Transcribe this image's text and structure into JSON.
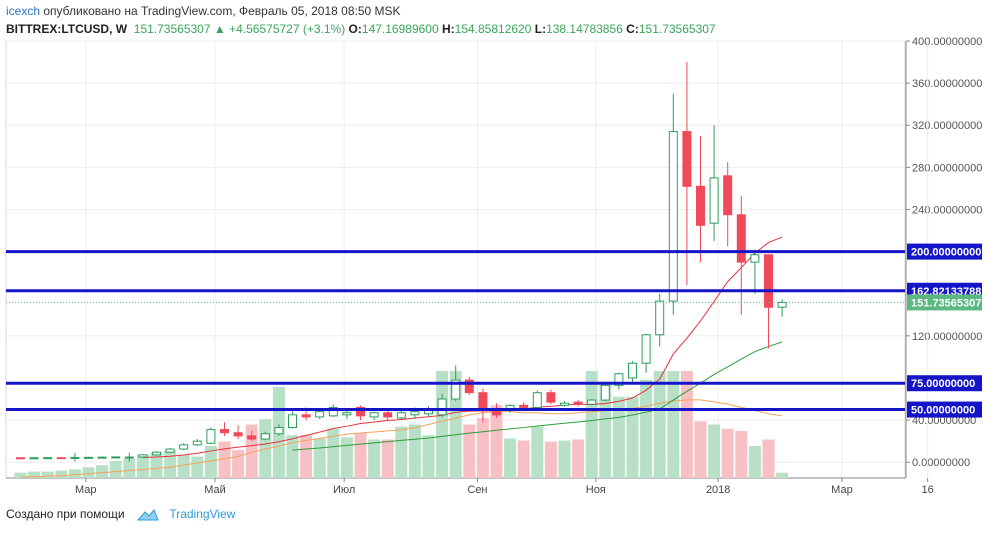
{
  "header": {
    "author": "icexch",
    "published": "опубликовано на TradingView.com, Февраль 05, 2018 08:50 MSK",
    "symbol": "BITTREX:LTCUSD, W",
    "last": "151.73565307",
    "change_arrow": "▲",
    "change": "+4.56575727 (+3.1%)",
    "o_label": "O:",
    "o": "147.16989600",
    "h_label": "H:",
    "h": "154.85812620",
    "l_label": "L:",
    "l": "138.14783856",
    "c_label": "C:",
    "c": "151.73565307"
  },
  "footer": {
    "created_with": "Создано при помощи",
    "brand": "TradingView"
  },
  "colors": {
    "up": "#2e9e5c",
    "up_fill": "#ffffff",
    "down": "#f04a5a",
    "hline": "#1414c8",
    "ma_fast": "#e8323c",
    "ma_slow": "#2e9e3a",
    "vol_ma": "#f5a25a",
    "vol_up": "#b7e0c6",
    "vol_down": "#f7c0c5",
    "price_label": "#5bb882",
    "grid": "#ededed"
  },
  "chart_data": {
    "type": "candlestick",
    "title": "",
    "y_axis": {
      "min": -15,
      "max": 400,
      "scale": "linear",
      "ticks": [
        {
          "value": 400,
          "label": "400.00000000"
        },
        {
          "value": 360,
          "label": "360.00000000"
        },
        {
          "value": 320,
          "label": "320.00000000"
        },
        {
          "value": 280,
          "label": "280.00000000"
        },
        {
          "value": 240,
          "label": "240.00000000"
        },
        {
          "value": 120,
          "label": "120.00000000"
        },
        {
          "value": 40,
          "label": "40.00000000"
        },
        {
          "value": 0,
          "label": "0.00000000"
        }
      ]
    },
    "x_axis": {
      "ticks": [
        {
          "index": 4.8,
          "label": "Мар"
        },
        {
          "index": 14.3,
          "label": "Май"
        },
        {
          "index": 23.8,
          "label": "Июл"
        },
        {
          "index": 33.6,
          "label": "Сен"
        },
        {
          "index": 42.3,
          "label": "Ноя"
        },
        {
          "index": 51.3,
          "label": "2018"
        },
        {
          "index": 60.4,
          "label": "Мар"
        },
        {
          "index": 66.7,
          "label": "16"
        }
      ]
    },
    "horizontal_lines": [
      {
        "value": 200,
        "label": "200.00000000"
      },
      {
        "value": 162.82133788,
        "label": "162.82133788"
      },
      {
        "value": 75,
        "label": "75.00000000"
      },
      {
        "value": 50,
        "label": "50.00000000"
      }
    ],
    "last_price": {
      "value": 151.73565307,
      "label": "151.73565307"
    },
    "candles": [
      {
        "o": 4.2,
        "h": 4.5,
        "l": 3.6,
        "c": 4.1
      },
      {
        "o": 4.1,
        "h": 4.6,
        "l": 3.8,
        "c": 4.2
      },
      {
        "o": 4.2,
        "h": 4.7,
        "l": 3.9,
        "c": 4.3
      },
      {
        "o": 4.3,
        "h": 4.8,
        "l": 3.9,
        "c": 4.2
      },
      {
        "o": 4.0,
        "h": 9.0,
        "l": 0.5,
        "c": 4.5
      },
      {
        "o": 4.5,
        "h": 5.2,
        "l": 4.0,
        "c": 4.6
      },
      {
        "o": 4.6,
        "h": 5.3,
        "l": 4.2,
        "c": 4.8
      },
      {
        "o": 4.8,
        "h": 5.6,
        "l": 4.3,
        "c": 5.0
      },
      {
        "o": 4.5,
        "h": 9.0,
        "l": 0.5,
        "c": 4.9
      },
      {
        "o": 5.0,
        "h": 7.5,
        "l": 4.6,
        "c": 7.0
      },
      {
        "o": 7.0,
        "h": 10.5,
        "l": 6.5,
        "c": 9.5
      },
      {
        "o": 9.5,
        "h": 13.5,
        "l": 9.0,
        "c": 12.5
      },
      {
        "o": 12.5,
        "h": 18.0,
        "l": 11.5,
        "c": 16.5
      },
      {
        "o": 16.5,
        "h": 22.0,
        "l": 15.5,
        "c": 20.0
      },
      {
        "o": 18.0,
        "h": 33.0,
        "l": 17.0,
        "c": 31.0
      },
      {
        "o": 31.0,
        "h": 38.0,
        "l": 25.0,
        "c": 28.0
      },
      {
        "o": 28.0,
        "h": 35.0,
        "l": 22.0,
        "c": 25.0
      },
      {
        "o": 25.0,
        "h": 30.0,
        "l": 20.0,
        "c": 22.0
      },
      {
        "o": 22.0,
        "h": 29.0,
        "l": 21.0,
        "c": 27.0
      },
      {
        "o": 27.0,
        "h": 36.0,
        "l": 25.0,
        "c": 33.0
      },
      {
        "o": 33.0,
        "h": 48.0,
        "l": 32.0,
        "c": 45.0
      },
      {
        "o": 45.0,
        "h": 52.0,
        "l": 40.0,
        "c": 43.0
      },
      {
        "o": 43.0,
        "h": 50.0,
        "l": 41.0,
        "c": 48.0
      },
      {
        "o": 44.0,
        "h": 55.0,
        "l": 43.0,
        "c": 52.0
      },
      {
        "o": 45.0,
        "h": 50.0,
        "l": 41.0,
        "c": 47.0
      },
      {
        "o": 52.0,
        "h": 54.0,
        "l": 40.0,
        "c": 44.0
      },
      {
        "o": 43.0,
        "h": 48.0,
        "l": 40.0,
        "c": 47.0
      },
      {
        "o": 47.0,
        "h": 50.0,
        "l": 40.0,
        "c": 43.0
      },
      {
        "o": 42.0,
        "h": 50.0,
        "l": 40.0,
        "c": 47.0
      },
      {
        "o": 45.0,
        "h": 52.0,
        "l": 41.0,
        "c": 48.0
      },
      {
        "o": 46.0,
        "h": 53.0,
        "l": 44.0,
        "c": 49.0
      },
      {
        "o": 45.0,
        "h": 65.0,
        "l": 43.0,
        "c": 60.0
      },
      {
        "o": 60.0,
        "h": 92.0,
        "l": 58.0,
        "c": 78.0
      },
      {
        "o": 78.0,
        "h": 81.0,
        "l": 64.0,
        "c": 66.0
      },
      {
        "o": 66.0,
        "h": 70.0,
        "l": 38.0,
        "c": 49.0
      },
      {
        "o": 50.0,
        "h": 56.0,
        "l": 42.0,
        "c": 45.0
      },
      {
        "o": 49.0,
        "h": 55.0,
        "l": 47.0,
        "c": 54.0
      },
      {
        "o": 54.0,
        "h": 57.0,
        "l": 50.0,
        "c": 52.0
      },
      {
        "o": 52.0,
        "h": 68.0,
        "l": 50.0,
        "c": 66.0
      },
      {
        "o": 66.0,
        "h": 69.0,
        "l": 55.0,
        "c": 57.0
      },
      {
        "o": 54.0,
        "h": 58.0,
        "l": 53.0,
        "c": 56.0
      },
      {
        "o": 57.0,
        "h": 59.0,
        "l": 53.0,
        "c": 55.0
      },
      {
        "o": 55.0,
        "h": 60.0,
        "l": 54.0,
        "c": 59.0
      },
      {
        "o": 59.0,
        "h": 75.0,
        "l": 58.0,
        "c": 73.0
      },
      {
        "o": 73.0,
        "h": 85.0,
        "l": 69.0,
        "c": 84.0
      },
      {
        "o": 80.0,
        "h": 96.0,
        "l": 76.0,
        "c": 94.0
      },
      {
        "o": 94.0,
        "h": 122.0,
        "l": 85.0,
        "c": 121.0
      },
      {
        "o": 121.0,
        "h": 160.0,
        "l": 110.0,
        "c": 153.0
      },
      {
        "o": 153.0,
        "h": 350.0,
        "l": 140.0,
        "c": 314.0
      },
      {
        "o": 314.0,
        "h": 380.0,
        "l": 168.0,
        "c": 262.0
      },
      {
        "o": 262.0,
        "h": 310.0,
        "l": 190.0,
        "c": 225.0
      },
      {
        "o": 227.0,
        "h": 320.0,
        "l": 210.0,
        "c": 270.0
      },
      {
        "o": 272.0,
        "h": 285.0,
        "l": 205.0,
        "c": 235.0
      },
      {
        "o": 235.0,
        "h": 253.0,
        "l": 140.0,
        "c": 190.0
      },
      {
        "o": 190.0,
        "h": 202.0,
        "l": 160.0,
        "c": 197.0
      },
      {
        "o": 197.0,
        "h": 197.0,
        "l": 108.0,
        "c": 147.17
      },
      {
        "o": 147.17,
        "h": 154.86,
        "l": 138.15,
        "c": 151.74
      }
    ],
    "ma_fast_values": [
      null,
      null,
      null,
      null,
      null,
      null,
      null,
      null,
      null,
      4.5,
      4.9,
      5.7,
      6.8,
      8.5,
      10.7,
      12.7,
      14.3,
      15.7,
      17.3,
      19.4,
      22.3,
      25.5,
      28.6,
      32.0,
      34.2,
      36.8,
      38.1,
      39.6,
      40.6,
      42.0,
      43.2,
      44.5,
      47.3,
      48.6,
      48.7,
      48.9,
      49.5,
      50.4,
      52.3,
      53.0,
      54.3,
      55.0,
      54.8,
      55.7,
      57.8,
      61.0,
      68.4,
      78.9,
      102.8,
      117.8,
      134.1,
      152.7,
      171.5,
      184.7,
      198.7,
      208.6,
      213.8
    ],
    "ma_slow_values": [
      null,
      null,
      null,
      null,
      null,
      null,
      null,
      null,
      null,
      null,
      null,
      null,
      null,
      null,
      null,
      null,
      null,
      null,
      null,
      null,
      11.5,
      12.5,
      13.5,
      14.8,
      16.0,
      17.2,
      18.3,
      19.6,
      20.7,
      21.8,
      23.0,
      24.5,
      26.1,
      27.6,
      28.9,
      30.3,
      31.6,
      32.9,
      34.4,
      35.7,
      37.0,
      38.2,
      39.6,
      41.1,
      42.6,
      44.8,
      47.5,
      50.5,
      59.0,
      67.3,
      75.1,
      83.3,
      90.6,
      98.0,
      105.1,
      109.8,
      114.3
    ],
    "volume": {
      "up": [
        true,
        true,
        true,
        true,
        true,
        true,
        true,
        true,
        true,
        true,
        true,
        true,
        true,
        true,
        true,
        false,
        false,
        false,
        true,
        true,
        true,
        false,
        true,
        true,
        true,
        false,
        true,
        false,
        true,
        true,
        true,
        true,
        true,
        false,
        false,
        false,
        true,
        false,
        true,
        false,
        true,
        false,
        true,
        true,
        true,
        true,
        true,
        true,
        true,
        false,
        false,
        true,
        false,
        false,
        true,
        false,
        true
      ],
      "values": [
        0.05,
        0.06,
        0.06,
        0.07,
        0.08,
        0.1,
        0.12,
        0.16,
        0.18,
        0.22,
        0.24,
        0.26,
        0.22,
        0.2,
        0.3,
        0.34,
        0.26,
        0.5,
        0.55,
        0.85,
        0.4,
        0.4,
        0.37,
        0.46,
        0.38,
        0.42,
        0.36,
        0.36,
        0.48,
        0.5,
        0.4,
        1.0,
        1.0,
        0.5,
        0.56,
        0.68,
        0.37,
        0.35,
        0.48,
        0.34,
        0.35,
        0.36,
        1.0,
        0.9,
        0.76,
        0.76,
        0.92,
        1.0,
        1.0,
        1.0,
        0.53,
        0.5,
        0.46,
        0.44,
        0.3,
        0.36,
        0.05
      ],
      "ma_values": [
        0.01,
        0.01,
        0.02,
        0.02,
        0.03,
        0.04,
        0.05,
        0.06,
        0.07,
        0.08,
        0.09,
        0.1,
        0.12,
        0.14,
        0.16,
        0.18,
        0.2,
        0.24,
        0.27,
        0.3,
        0.33,
        0.35,
        0.37,
        0.39,
        0.41,
        0.42,
        0.43,
        0.44,
        0.45,
        0.47,
        0.5,
        0.53,
        0.56,
        0.59,
        0.61,
        0.62,
        0.62,
        0.61,
        0.61,
        0.6,
        0.6,
        0.61,
        0.62,
        0.63,
        0.64,
        0.65,
        0.67,
        0.7,
        0.72,
        0.73,
        0.73,
        0.71,
        0.69,
        0.66,
        0.63,
        0.6,
        0.58
      ]
    },
    "grid": true,
    "legend": "none"
  }
}
